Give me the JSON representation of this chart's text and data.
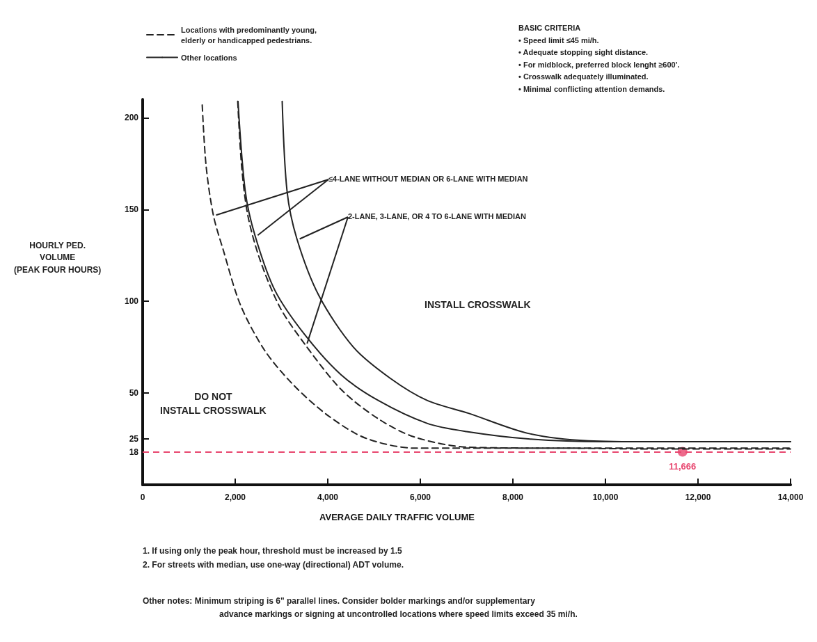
{
  "chart_data": {
    "type": "line",
    "xlabel": "AVERAGE DAILY TRAFFIC VOLUME",
    "ylabel": "HOURLY PED.\nVOLUME\n(PEAK FOUR HOURS)",
    "xlim": [
      0,
      14000
    ],
    "xticks": [
      0,
      {
        "value": 2000,
        "label": "2,000"
      },
      {
        "value": 4000,
        "label": "4,000"
      },
      {
        "value": 6000,
        "label": "6,000"
      },
      {
        "value": 8000,
        "label": "8,000"
      },
      {
        "value": 10000,
        "label": "10,000"
      },
      {
        "value": 12000,
        "label": "12,000"
      },
      {
        "value": 14000,
        "label": "14,000"
      }
    ],
    "ylim": [
      0,
      210
    ],
    "yticks": [
      18,
      25,
      50,
      100,
      150,
      200
    ],
    "grid": false,
    "legend": "top left",
    "marker": "none",
    "series": [
      {
        "name": "Locations with predominantly young, elderly or handicapped pedestrians.",
        "color": "#222222",
        "line_style": "dashed",
        "x": [
          1287,
          1370,
          1527,
          1741,
          2113,
          2643,
          3274,
          4018,
          4821,
          5878,
          7000,
          9000,
          11000,
          14000
        ],
        "values": [
          207,
          174,
          147,
          128,
          98,
          73,
          54,
          37.5,
          25.4,
          20,
          20,
          20,
          19.5,
          19.5
        ]
      },
      {
        "color": "#222222",
        "line_style": "dashed",
        "x": [
          2054,
          2137,
          2271,
          2530,
          2961,
          3493,
          4286,
          5089,
          5878,
          7039,
          9000,
          11000,
          14000
        ],
        "values": [
          209,
          174,
          147,
          123,
          97,
          77,
          52,
          36,
          26,
          20.5,
          20,
          20,
          20
        ]
      },
      {
        "name": "Other locations",
        "color": "#222222",
        "line_style": "solid",
        "x": [
          2060,
          2217,
          2426,
          2857,
          3497,
          4286,
          5089,
          6146,
          7000,
          8333,
          9950,
          12000,
          14000
        ],
        "values": [
          209,
          160,
          136,
          106,
          82,
          60,
          46,
          33.5,
          29,
          25,
          23.5,
          23.5,
          23.5
        ]
      },
      {
        "color": "#222222",
        "line_style": "solid",
        "x": [
          3015,
          3120,
          3333,
          3810,
          4554,
          5353,
          6146,
          7039,
          8333,
          9628,
          11000,
          14000
        ],
        "values": [
          209,
          160,
          134,
          103,
          75,
          58,
          46,
          39,
          28,
          24,
          23.5,
          23.5
        ]
      },
      {
        "type": "scatter",
        "marker": "circle",
        "color": "#e8456e",
        "x": [
          11666
        ],
        "values": [
          18
        ]
      }
    ],
    "ref_lines": [
      {
        "axis": "y",
        "value": 18,
        "color": "#e8456e",
        "line_style": "dashed"
      }
    ],
    "annotations": [
      {
        "text": "11,666",
        "x": 11666,
        "y": 18
      },
      {
        "text": "≤4-LANE WITHOUT MEDIAN OR 6-LANE WITH MEDIAN",
        "x": 1527,
        "y": 147
      },
      {
        "text": "2-LANE, 3-LANE, OR 4 TO 6-LANE WITH MEDIAN",
        "x": 3333,
        "y": 134
      },
      "DO NOT\nINSTALL CROSSWALK",
      "INSTALL CROSSWALK",
      "BASIC CRITERIA\n• Speed limit ≤45 mi/h.\n• Adequate stopping sight distance.\n• For midblock, preferred block lenght ≥600'.\n• Crosswalk adequately illuminated.\n• Minimal conflicting attention demands.",
      "1. If using only the peak hour, threshold must be increased by 1.5\n2. For streets with median, use one-way (directional) ADT volume.",
      "Other notes: Minimum striping is 6\" parallel lines. Consider bolder markings and/or supplementary\nadvance markings or signing at uncontrolled locations where speed limits exceed 35 mi/h."
    ]
  }
}
